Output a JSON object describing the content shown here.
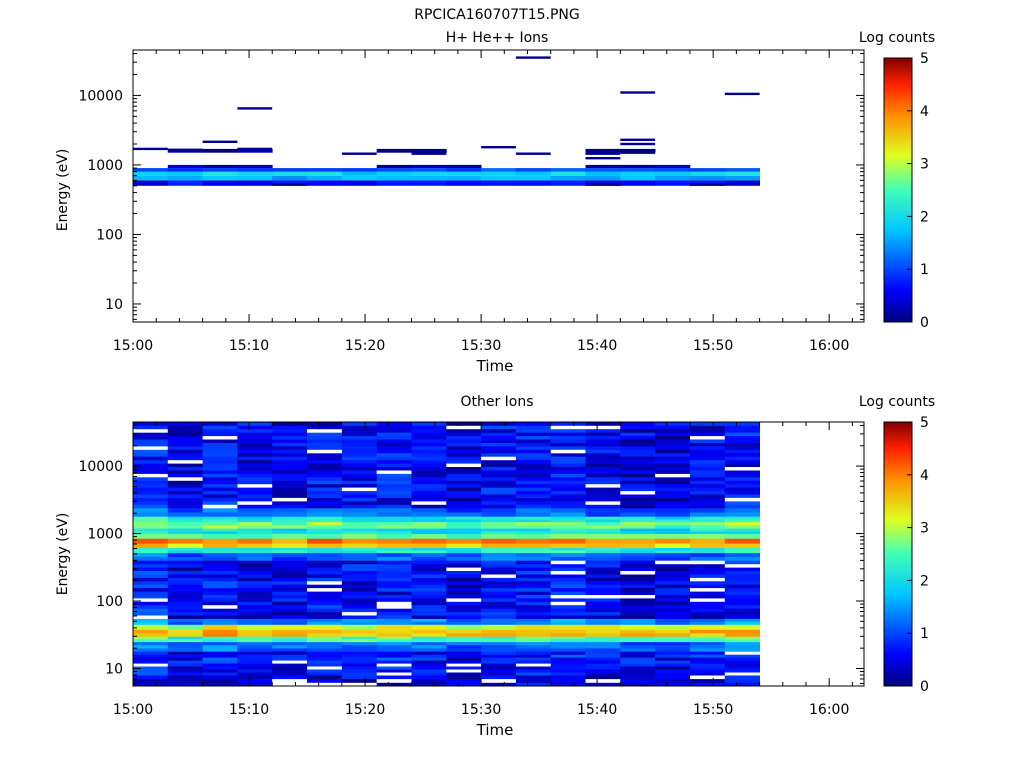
{
  "figure_title": "RPCICA160707T15.PNG",
  "chart_data": [
    {
      "type": "heatmap",
      "title": "H+ He++ Ions",
      "xlabel": "Time",
      "ylabel": "Energy (eV)",
      "y_scale": "log",
      "xlim": [
        "15:00",
        "16:03"
      ],
      "ylim": [
        5.5,
        45000
      ],
      "x_ticks": [
        "15:00",
        "15:10",
        "15:20",
        "15:30",
        "15:40",
        "15:50",
        "16:00"
      ],
      "y_ticks": [
        "10",
        "100",
        "1000",
        "10000"
      ],
      "colorbar": {
        "label": "Log counts",
        "range": [
          0,
          5
        ],
        "ticks": [
          "0",
          "1",
          "2",
          "3",
          "4",
          "5"
        ]
      },
      "time_bins": [
        "15:00",
        "15:03",
        "15:06",
        "15:09",
        "15:12",
        "15:15",
        "15:18",
        "15:21",
        "15:24",
        "15:27",
        "15:30",
        "15:33",
        "15:36",
        "15:39",
        "15:42",
        "15:45",
        "15:48",
        "15:51",
        "15:54"
      ],
      "bands": [
        {
          "e_lo": 500,
          "e_hi": 600,
          "value": 0.6,
          "cols": [
            0,
            1,
            2,
            3,
            4,
            5,
            6,
            7,
            8,
            9,
            10,
            11,
            12,
            13,
            14,
            15,
            16,
            17
          ]
        },
        {
          "e_lo": 600,
          "e_hi": 700,
          "value": 1.6,
          "cols": [
            0,
            1,
            2,
            3,
            4,
            5,
            6,
            7,
            8,
            9,
            10,
            11,
            12,
            13,
            14,
            15,
            16,
            17
          ]
        },
        {
          "e_lo": 700,
          "e_hi": 800,
          "value": 1.9,
          "cols": [
            0,
            1,
            2,
            3,
            4,
            5,
            6,
            7,
            8,
            9,
            10,
            11,
            12,
            13,
            14,
            15,
            16,
            17
          ]
        },
        {
          "e_lo": 800,
          "e_hi": 900,
          "value": 1.0,
          "cols": [
            0,
            1,
            2,
            3,
            4,
            5,
            6,
            7,
            8,
            9,
            10,
            11,
            12,
            13,
            14,
            15,
            16,
            17
          ]
        },
        {
          "e_lo": 900,
          "e_hi": 1000,
          "value": 0.2,
          "cols": [
            1,
            2,
            3,
            7,
            8,
            9,
            13,
            14,
            15
          ]
        },
        {
          "e_lo": 1500,
          "e_hi": 1700,
          "value": 0.1,
          "cols": [
            1,
            2,
            3,
            7,
            8,
            13,
            14
          ]
        }
      ],
      "sparse_cells": [
        {
          "t": 0,
          "e": 1700,
          "value": 0.1
        },
        {
          "t": 1,
          "e": 1650,
          "value": 0.1
        },
        {
          "t": 2,
          "e": 2150,
          "value": 0.1
        },
        {
          "t": 3,
          "e": 6500,
          "value": 0.1
        },
        {
          "t": 3,
          "e": 1700,
          "value": 0.1
        },
        {
          "t": 6,
          "e": 1450,
          "value": 0.1
        },
        {
          "t": 8,
          "e": 1450,
          "value": 0.1
        },
        {
          "t": 10,
          "e": 1800,
          "value": 0.1
        },
        {
          "t": 11,
          "e": 35000,
          "value": 0.1
        },
        {
          "t": 11,
          "e": 1450,
          "value": 0.1
        },
        {
          "t": 13,
          "e": 1250,
          "value": 0.1
        },
        {
          "t": 13,
          "e": 1450,
          "value": 0.1
        },
        {
          "t": 14,
          "e": 11000,
          "value": 0.1
        },
        {
          "t": 14,
          "e": 2300,
          "value": 0.1
        },
        {
          "t": 14,
          "e": 2000,
          "value": 0.1
        },
        {
          "t": 14,
          "e": 1500,
          "value": 0.1
        },
        {
          "t": 16,
          "e": 520,
          "value": 0.1
        },
        {
          "t": 17,
          "e": 10500,
          "value": 0.1
        },
        {
          "t": 13,
          "e": 520,
          "value": 0.1
        },
        {
          "t": 4,
          "e": 520,
          "value": 0.1
        }
      ]
    },
    {
      "type": "heatmap",
      "title": "Other Ions",
      "xlabel": "Time",
      "ylabel": "Energy (eV)",
      "y_scale": "log",
      "xlim": [
        "15:00",
        "16:03"
      ],
      "ylim": [
        5.5,
        45000
      ],
      "x_ticks": [
        "15:00",
        "15:10",
        "15:20",
        "15:30",
        "15:40",
        "15:50",
        "16:00"
      ],
      "y_ticks": [
        "10",
        "100",
        "1000",
        "10000"
      ],
      "colorbar": {
        "label": "Log counts",
        "range": [
          0,
          5
        ],
        "ticks": [
          "0",
          "1",
          "2",
          "3",
          "4",
          "5"
        ]
      },
      "time_bins": [
        "15:00",
        "15:03",
        "15:06",
        "15:09",
        "15:12",
        "15:15",
        "15:18",
        "15:21",
        "15:24",
        "15:27",
        "15:30",
        "15:33",
        "15:36",
        "15:39",
        "15:42",
        "15:45",
        "15:48",
        "15:51",
        "15:54"
      ],
      "energy_profile": [
        {
          "e_lo": 5.5,
          "e_hi": 8,
          "value": 0.4
        },
        {
          "e_lo": 8,
          "e_hi": 12,
          "value": 0.55
        },
        {
          "e_lo": 12,
          "e_hi": 18,
          "value": 0.7
        },
        {
          "e_lo": 18,
          "e_hi": 25,
          "value": 1.2
        },
        {
          "e_lo": 25,
          "e_hi": 30,
          "value": 2.4
        },
        {
          "e_lo": 30,
          "e_hi": 38,
          "value": 3.6
        },
        {
          "e_lo": 38,
          "e_hi": 45,
          "value": 3.1
        },
        {
          "e_lo": 45,
          "e_hi": 55,
          "value": 1.4
        },
        {
          "e_lo": 55,
          "e_hi": 400,
          "value": 0.55
        },
        {
          "e_lo": 400,
          "e_hi": 520,
          "value": 1.1
        },
        {
          "e_lo": 520,
          "e_hi": 620,
          "value": 2.2
        },
        {
          "e_lo": 620,
          "e_hi": 720,
          "value": 3.5
        },
        {
          "e_lo": 720,
          "e_hi": 850,
          "value": 3.9
        },
        {
          "e_lo": 850,
          "e_hi": 1000,
          "value": 2.6
        },
        {
          "e_lo": 1000,
          "e_hi": 1200,
          "value": 2.0
        },
        {
          "e_lo": 1200,
          "e_hi": 1500,
          "value": 2.7
        },
        {
          "e_lo": 1500,
          "e_hi": 1800,
          "value": 2.1
        },
        {
          "e_lo": 1800,
          "e_hi": 2400,
          "value": 1.1
        },
        {
          "e_lo": 2400,
          "e_hi": 45000,
          "value": 0.55
        }
      ],
      "data_end_time": "15:54"
    }
  ]
}
